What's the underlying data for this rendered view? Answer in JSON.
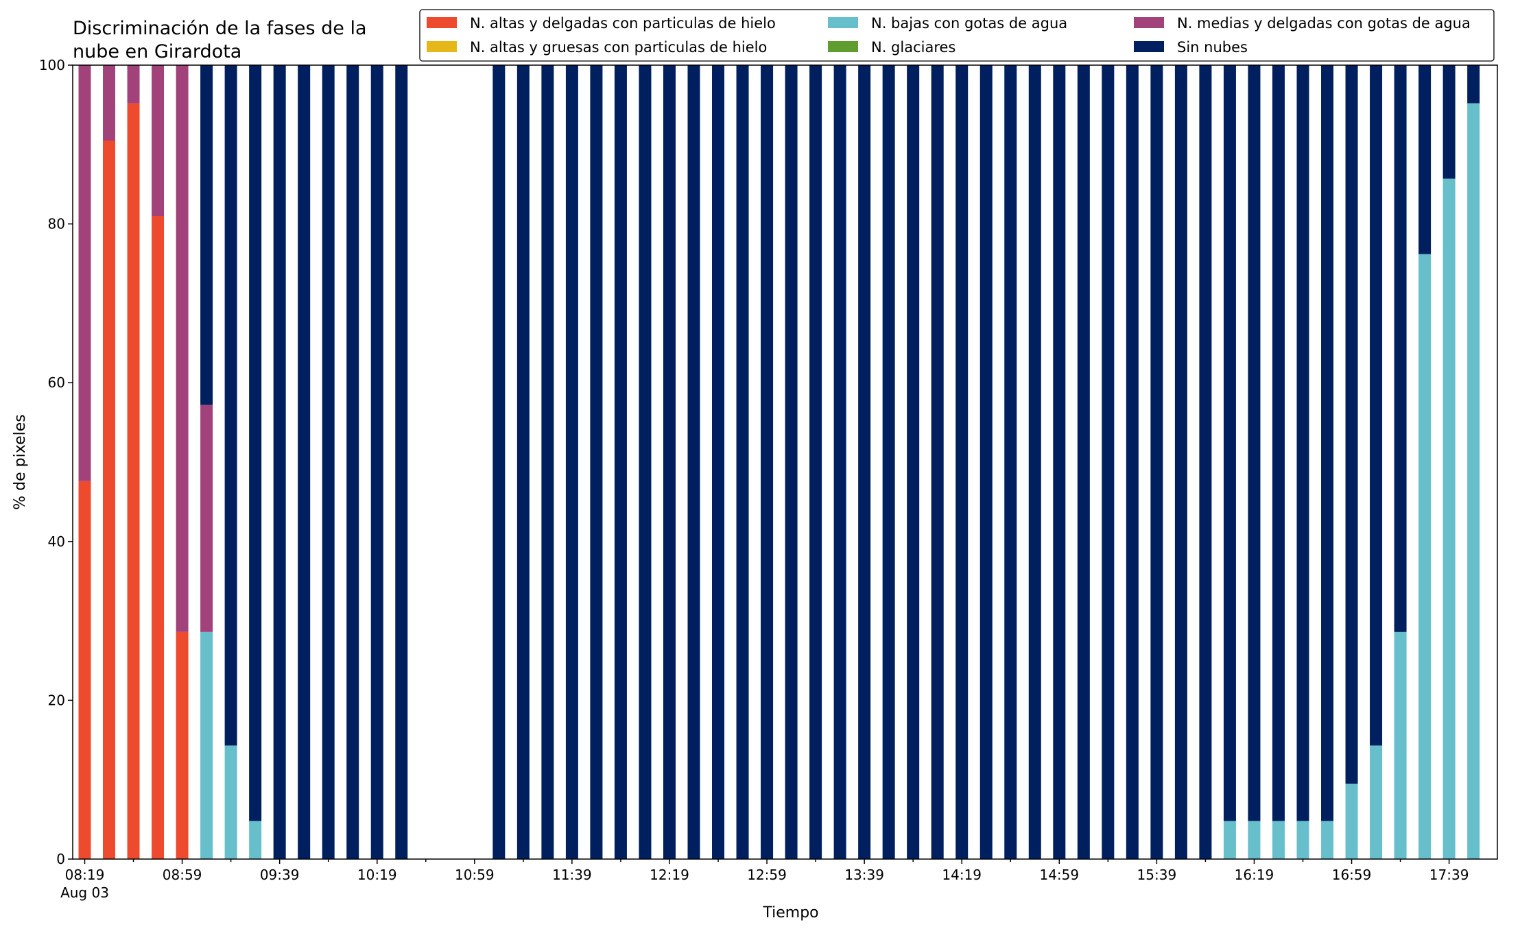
{
  "chart_data": {
    "type": "bar",
    "stacked": true,
    "title": "Discriminación de la fases de la\nnube en Girardota",
    "xlabel": "Tiempo",
    "ylabel": "% de pixeles",
    "ylim": [
      0,
      100
    ],
    "yticks": [
      0,
      20,
      40,
      60,
      80,
      100
    ],
    "x_start": "08:19",
    "x_step_minutes": 10,
    "x_count": 58,
    "xtick_labels": [
      "08:19",
      "08:59",
      "09:39",
      "10:19",
      "10:59",
      "11:39",
      "12:19",
      "12:59",
      "13:39",
      "14:19",
      "14:59",
      "15:39",
      "16:19",
      "16:59",
      "17:39"
    ],
    "xtick_sublabel": "Aug 03",
    "legend_position": "top-right",
    "grid": false,
    "series": [
      {
        "name": "N. altas y delgadas con particulas de hielo",
        "color": "#ee4a2d",
        "values": [
          47.6,
          90.5,
          95.2,
          81,
          28.6,
          0,
          0,
          0,
          0,
          0,
          0,
          0,
          0,
          0,
          0,
          0,
          0,
          0,
          0,
          0,
          0,
          0,
          0,
          0,
          0,
          0,
          0,
          0,
          0,
          0,
          0,
          0,
          0,
          0,
          0,
          0,
          0,
          0,
          0,
          0,
          0,
          0,
          0,
          0,
          0,
          0,
          0,
          0,
          0,
          0,
          0,
          0,
          0,
          0,
          0,
          0,
          0,
          0
        ]
      },
      {
        "name": "N. altas y gruesas con particulas de hielo",
        "color": "#e5b719",
        "values": [
          0,
          0,
          0,
          0,
          0,
          0,
          0,
          0,
          0,
          0,
          0,
          0,
          0,
          0,
          0,
          0,
          0,
          0,
          0,
          0,
          0,
          0,
          0,
          0,
          0,
          0,
          0,
          0,
          0,
          0,
          0,
          0,
          0,
          0,
          0,
          0,
          0,
          0,
          0,
          0,
          0,
          0,
          0,
          0,
          0,
          0,
          0,
          0,
          0,
          0,
          0,
          0,
          0,
          0,
          0,
          0,
          0,
          0
        ]
      },
      {
        "name": "N. bajas con gotas de agua",
        "color": "#67bfcb",
        "values": [
          0,
          0,
          0,
          0,
          0,
          28.6,
          14.3,
          4.8,
          0,
          0,
          0,
          0,
          0,
          0,
          0,
          0,
          0,
          0,
          0,
          0,
          0,
          0,
          0,
          0,
          0,
          0,
          0,
          0,
          0,
          0,
          0,
          0,
          0,
          0,
          0,
          0,
          0,
          0,
          0,
          0,
          0,
          0,
          0,
          0,
          0,
          0,
          0,
          4.8,
          4.8,
          4.8,
          4.8,
          4.8,
          9.5,
          14.3,
          28.6,
          76.2,
          85.7,
          95.2
        ]
      },
      {
        "name": "N. glaciares",
        "color": "#5f9e2e",
        "values": [
          0,
          0,
          0,
          0,
          0,
          0,
          0,
          0,
          0,
          0,
          0,
          0,
          0,
          0,
          0,
          0,
          0,
          0,
          0,
          0,
          0,
          0,
          0,
          0,
          0,
          0,
          0,
          0,
          0,
          0,
          0,
          0,
          0,
          0,
          0,
          0,
          0,
          0,
          0,
          0,
          0,
          0,
          0,
          0,
          0,
          0,
          0,
          0,
          0,
          0,
          0,
          0,
          0,
          0,
          0,
          0,
          0,
          0
        ]
      },
      {
        "name": "N. medias y delgadas con gotas de agua",
        "color": "#a1437a",
        "values": [
          52.4,
          9.5,
          4.8,
          19,
          71.4,
          28.6,
          0,
          0,
          0,
          0,
          0,
          0,
          0,
          0,
          0,
          0,
          0,
          0,
          0,
          0,
          0,
          0,
          0,
          0,
          0,
          0,
          0,
          0,
          0,
          0,
          0,
          0,
          0,
          0,
          0,
          0,
          0,
          0,
          0,
          0,
          0,
          0,
          0,
          0,
          0,
          0,
          0,
          0,
          0,
          0,
          0,
          0,
          0,
          0,
          0,
          0,
          0,
          0
        ]
      },
      {
        "name": "Sin nubes",
        "color": "#001f5e",
        "values": [
          0,
          0,
          0,
          0,
          0,
          42.8,
          85.7,
          95.2,
          100,
          100,
          100,
          100,
          100,
          100,
          0,
          0,
          0,
          100,
          100,
          100,
          100,
          100,
          100,
          100,
          100,
          100,
          100,
          100,
          100,
          100,
          100,
          100,
          100,
          100,
          100,
          100,
          100,
          100,
          100,
          100,
          100,
          100,
          100,
          100,
          100,
          100,
          100,
          95.2,
          95.2,
          95.2,
          95.2,
          95.2,
          90.5,
          85.7,
          71.4,
          23.8,
          14.3,
          4.8
        ]
      }
    ]
  }
}
